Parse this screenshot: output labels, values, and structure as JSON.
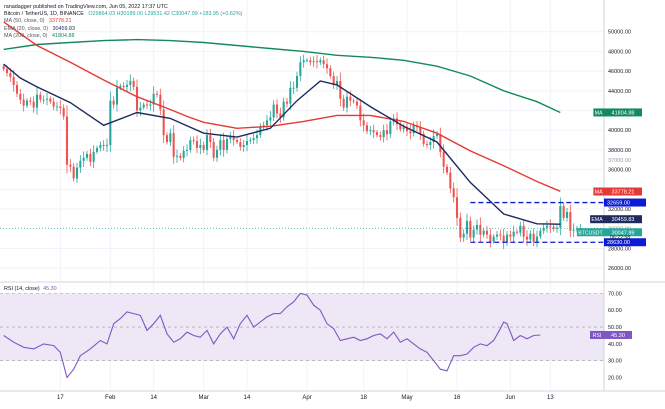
{
  "header": {
    "published": "ranadagger published on TradingView.com, Jun 05, 2022 17:37 UTC",
    "symbol": "Bitcoin / TetherUS, 1D, BINANCE",
    "ohlc": "O29864.03  H30189.00  L29531.42  C30047.99  +183.95 (+0.62%)",
    "ind1": "MA (50, close, 0)",
    "ind1_value": "33778.21",
    "ind2": "EMA (20, close, 0)",
    "ind2_value": "30459.83",
    "ind3": "MA (200, close, 0)",
    "ind3_value": "41804.88"
  },
  "colors": {
    "up": "#26a69a",
    "down": "#ef5350",
    "ema20": "#1f2a5e",
    "ma50": "#e53935",
    "ma200": "#138a5e",
    "rsi": "#7e57c2",
    "rsi_band": "#ede7f6",
    "support": "#0d1bd6",
    "price_tag": "#26a69a"
  },
  "chart_data": [
    {
      "type": "candlestick",
      "title": "Bitcoin / TetherUS, 1D, BINANCE",
      "ylim": [
        25000,
        52000
      ],
      "y_ticks": [
        {
          "value": 50000,
          "label": "50000.00"
        },
        {
          "value": 48000,
          "label": "48000.00"
        },
        {
          "value": 46000,
          "label": "46000.00"
        },
        {
          "value": 44000,
          "label": "44000.00"
        },
        {
          "value": 42000,
          "label": "42000.00"
        },
        {
          "value": 40000,
          "label": "40000.00"
        },
        {
          "value": 38000,
          "label": "38000.00"
        },
        {
          "value": 36000,
          "label": "36000.00"
        },
        {
          "value": 34000,
          "label": "34000.00"
        },
        {
          "value": 32000,
          "label": "32000.00"
        },
        {
          "value": 28000,
          "label": "28000.00"
        },
        {
          "value": 26000,
          "label": "26000.00"
        }
      ],
      "x_labels": [
        {
          "value": 17,
          "label": "17"
        },
        {
          "value": 32,
          "label": "Feb"
        },
        {
          "value": 45,
          "label": "14"
        },
        {
          "value": 60,
          "label": "Mar"
        },
        {
          "value": 73,
          "label": "14"
        },
        {
          "value": 91,
          "label": "Apr"
        },
        {
          "value": 108,
          "label": "18"
        },
        {
          "value": 121,
          "label": "May"
        },
        {
          "value": 136,
          "label": "16"
        },
        {
          "value": 152,
          "label": "Jun"
        },
        {
          "value": 164,
          "label": "13"
        }
      ],
      "close_series": [
        46200,
        45800,
        45400,
        44600,
        43700,
        43100,
        42500,
        43000,
        42900,
        42300,
        43600,
        43100,
        43100,
        43200,
        42900,
        42400,
        42400,
        42250,
        41400,
        36500,
        36300,
        35100,
        36200,
        36900,
        37200,
        37600,
        36800,
        37800,
        38200,
        38500,
        38400,
        38500,
        43000,
        42600,
        44300,
        44500,
        44400,
        44600,
        45000,
        44400,
        42000,
        42300,
        42600,
        42500,
        42600,
        43700,
        43600,
        42100,
        39500,
        38800,
        39700,
        37300,
        37400,
        37200,
        37900,
        38000,
        39000,
        38900,
        38200,
        38500,
        38000,
        39500,
        38800,
        37200,
        38000,
        39000,
        38000,
        39100,
        39400,
        39000,
        38800,
        38300,
        38500,
        38900,
        39000,
        39200,
        39500,
        40400,
        40500,
        41000,
        41300,
        42600,
        41700,
        41300,
        42900,
        42700,
        44300,
        44300,
        45500,
        46900,
        47100,
        47100,
        46900,
        47000,
        46900,
        47100,
        46700,
        46300,
        45500,
        44600,
        45000,
        43200,
        42300,
        43400,
        43000,
        42900,
        42500,
        41000,
        40500,
        39900,
        40000,
        39800,
        39500,
        39300,
        40000,
        39600,
        40900,
        41200,
        40600,
        40100,
        40300,
        39900,
        39700,
        40500,
        40300,
        39600,
        38600,
        38500,
        38800,
        39400,
        39600,
        37800,
        36300,
        35700,
        34100,
        33200,
        31100,
        29100,
        29500,
        30800,
        29100,
        29900,
        30400,
        29400,
        29800,
        29400,
        28700,
        29200,
        29400,
        29300,
        28600,
        29400,
        29200,
        29700,
        29600,
        30300,
        29200,
        28900,
        29500,
        28700,
        29200,
        29800,
        30100,
        30300,
        30200,
        30000,
        30100,
        32300,
        31100,
        31700,
        29800,
        29900,
        30000,
        30050
      ],
      "series": [
        {
          "name": "MA (200, close, 0)",
          "line": [
            [
              0,
              48200
            ],
            [
              10,
              48700
            ],
            [
              20,
              48900
            ],
            [
              30,
              49100
            ],
            [
              40,
              49200
            ],
            [
              50,
              49100
            ],
            [
              60,
              48900
            ],
            [
              70,
              48600
            ],
            [
              80,
              48300
            ],
            [
              90,
              48000
            ],
            [
              100,
              47600
            ],
            [
              110,
              47400
            ],
            [
              120,
              47100
            ],
            [
              130,
              46500
            ],
            [
              140,
              45500
            ],
            [
              150,
              44000
            ],
            [
              160,
              42900
            ],
            [
              167,
              41800
            ]
          ]
        },
        {
          "name": "MA (50, close, 0)",
          "line": [
            [
              0,
              51000
            ],
            [
              10,
              48600
            ],
            [
              20,
              46900
            ],
            [
              30,
              45100
            ],
            [
              40,
              43400
            ],
            [
              50,
              42100
            ],
            [
              55,
              41400
            ],
            [
              60,
              40800
            ],
            [
              70,
              40200
            ],
            [
              80,
              40400
            ],
            [
              90,
              40900
            ],
            [
              100,
              41500
            ],
            [
              110,
              41500
            ],
            [
              120,
              40900
            ],
            [
              130,
              39700
            ],
            [
              140,
              37900
            ],
            [
              150,
              36400
            ],
            [
              160,
              34800
            ],
            [
              167,
              33800
            ]
          ]
        },
        {
          "name": "EMA (20, close, 0)",
          "line": [
            [
              0,
              46700
            ],
            [
              5,
              45300
            ],
            [
              10,
              44400
            ],
            [
              20,
              42800
            ],
            [
              30,
              40500
            ],
            [
              40,
              41800
            ],
            [
              50,
              41200
            ],
            [
              60,
              39700
            ],
            [
              70,
              39300
            ],
            [
              80,
              40200
            ],
            [
              88,
              43000
            ],
            [
              95,
              45000
            ],
            [
              100,
              44600
            ],
            [
              110,
              42400
            ],
            [
              120,
              40400
            ],
            [
              130,
              38800
            ],
            [
              140,
              34700
            ],
            [
              150,
              31500
            ],
            [
              160,
              30500
            ],
            [
              167,
              30460
            ]
          ]
        }
      ],
      "annotations": [
        {
          "label": "32659.00",
          "value": 32659
        },
        {
          "label": "28630.00",
          "value": 28630
        }
      ],
      "price_tags": [
        {
          "name": "MA",
          "value": 41804.88,
          "label": "41804.88"
        },
        {
          "name": "MA",
          "value": 33778.21,
          "label": "33778.21"
        },
        {
          "name": "EMA",
          "value": 30459.83,
          "label": "30459.83"
        },
        {
          "name": "BTCUSDT",
          "value": 30047.99,
          "label": "30047.99"
        }
      ],
      "extra_labels": [
        "06:22:58",
        "37000.00",
        "30000.00"
      ]
    },
    {
      "type": "line",
      "title": "RSI (14, close)",
      "title_value": "45.30",
      "ylim": [
        15,
        72
      ],
      "y_ticks": [
        {
          "value": 70,
          "label": "70.00"
        },
        {
          "value": 60,
          "label": "60.00"
        },
        {
          "value": 50,
          "label": "50.00"
        },
        {
          "value": 40,
          "label": "40.00"
        },
        {
          "value": 30,
          "label": "30.00"
        },
        {
          "value": 20,
          "label": "20.00"
        }
      ],
      "band": [
        30,
        70
      ],
      "series": [
        {
          "name": "RSI",
          "tag": "45.30",
          "line": [
            [
              0,
              45
            ],
            [
              3,
              41
            ],
            [
              6,
              38
            ],
            [
              9,
              37
            ],
            [
              12,
              40
            ],
            [
              15,
              39
            ],
            [
              17,
              35
            ],
            [
              19,
              20
            ],
            [
              21,
              25
            ],
            [
              23,
              33
            ],
            [
              26,
              37
            ],
            [
              29,
              42
            ],
            [
              31,
              40
            ],
            [
              33,
              52
            ],
            [
              35,
              55
            ],
            [
              37,
              59
            ],
            [
              39,
              58
            ],
            [
              41,
              57
            ],
            [
              43,
              48
            ],
            [
              45,
              52
            ],
            [
              47,
              57
            ],
            [
              49,
              46
            ],
            [
              51,
              41
            ],
            [
              53,
              43
            ],
            [
              55,
              47
            ],
            [
              57,
              45
            ],
            [
              59,
              44
            ],
            [
              61,
              48
            ],
            [
              63,
              40
            ],
            [
              65,
              46
            ],
            [
              67,
              50
            ],
            [
              69,
              43
            ],
            [
              71,
              52
            ],
            [
              73,
              57
            ],
            [
              75,
              50
            ],
            [
              77,
              53
            ],
            [
              79,
              56
            ],
            [
              81,
              58
            ],
            [
              83,
              58
            ],
            [
              85,
              62
            ],
            [
              87,
              65
            ],
            [
              89,
              70
            ],
            [
              91,
              69
            ],
            [
              93,
              63
            ],
            [
              95,
              60
            ],
            [
              97,
              52
            ],
            [
              99,
              49
            ],
            [
              101,
              42
            ],
            [
              103,
              43
            ],
            [
              105,
              44
            ],
            [
              107,
              42
            ],
            [
              109,
              43
            ],
            [
              111,
              45
            ],
            [
              113,
              46
            ],
            [
              115,
              43
            ],
            [
              117,
              47
            ],
            [
              119,
              41
            ],
            [
              121,
              43
            ],
            [
              123,
              40
            ],
            [
              125,
              37
            ],
            [
              127,
              35
            ],
            [
              129,
              30
            ],
            [
              131,
              25
            ],
            [
              133,
              24
            ],
            [
              135,
              33
            ],
            [
              137,
              33
            ],
            [
              139,
              34
            ],
            [
              141,
              38
            ],
            [
              143,
              40
            ],
            [
              145,
              39
            ],
            [
              147,
              42
            ],
            [
              149,
              49
            ],
            [
              150,
              53
            ],
            [
              151,
              52
            ],
            [
              153,
              42
            ],
            [
              155,
              45
            ],
            [
              157,
              43
            ],
            [
              159,
              45
            ],
            [
              161,
              45.3
            ]
          ]
        }
      ]
    }
  ]
}
